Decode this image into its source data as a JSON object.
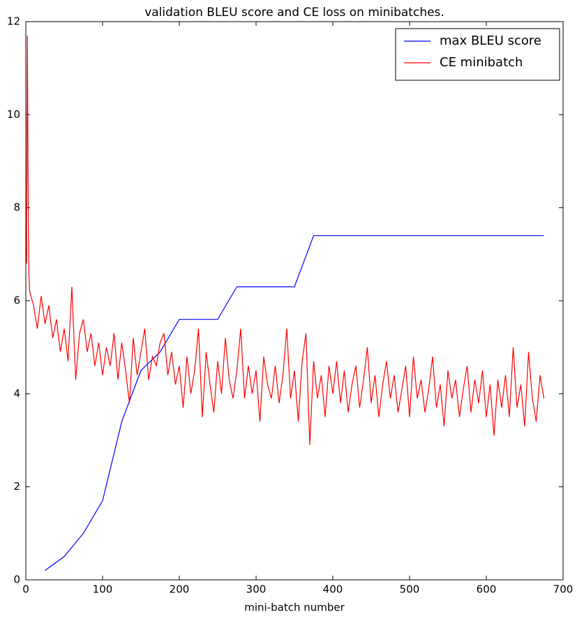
{
  "chart_data": {
    "type": "line",
    "title": "validation BLEU score and CE loss on minibatches.",
    "x_label": "mini-batch number",
    "xlim": [
      0,
      700
    ],
    "xticks": [
      0,
      100,
      200,
      300,
      400,
      500,
      600,
      700
    ],
    "ylim": [
      0,
      12
    ],
    "yticks": [
      0,
      2,
      4,
      6,
      8,
      10,
      12
    ],
    "grid": false,
    "legend": "upper right",
    "series": [
      {
        "name": "max BLEU score",
        "color": "#0000ff",
        "x": [
          25,
          50,
          75,
          100,
          125,
          150,
          175,
          200,
          225,
          250,
          275,
          300,
          325,
          350,
          375,
          400,
          425,
          450,
          475,
          500,
          525,
          550,
          575,
          600,
          625,
          650,
          675
        ],
        "values": [
          0.2,
          0.5,
          1.0,
          1.7,
          3.4,
          4.5,
          4.9,
          5.6,
          5.6,
          5.6,
          6.3,
          6.3,
          6.3,
          6.3,
          7.4,
          7.4,
          7.4,
          7.4,
          7.4,
          7.4,
          7.4,
          7.4,
          7.4,
          7.4,
          7.4,
          7.4,
          7.4
        ]
      },
      {
        "name": "CE minibatch",
        "color": "#ff0000",
        "x": [
          1,
          2,
          3,
          4,
          5,
          10,
          15,
          20,
          25,
          30,
          35,
          40,
          45,
          50,
          55,
          60,
          65,
          70,
          75,
          80,
          85,
          90,
          95,
          100,
          105,
          110,
          115,
          120,
          125,
          130,
          135,
          140,
          145,
          150,
          155,
          160,
          165,
          170,
          175,
          180,
          185,
          190,
          195,
          200,
          205,
          210,
          215,
          220,
          225,
          230,
          235,
          240,
          245,
          250,
          255,
          260,
          265,
          270,
          275,
          280,
          285,
          290,
          295,
          300,
          305,
          310,
          315,
          320,
          325,
          330,
          335,
          340,
          345,
          350,
          355,
          360,
          365,
          370,
          375,
          380,
          385,
          390,
          395,
          400,
          405,
          410,
          415,
          420,
          425,
          430,
          435,
          440,
          445,
          450,
          455,
          460,
          465,
          470,
          475,
          480,
          485,
          490,
          495,
          500,
          505,
          510,
          515,
          520,
          525,
          530,
          535,
          540,
          545,
          550,
          555,
          560,
          565,
          570,
          575,
          580,
          585,
          590,
          595,
          600,
          605,
          610,
          615,
          620,
          625,
          630,
          635,
          640,
          645,
          650,
          655,
          660,
          665,
          670,
          675
        ],
        "values": [
          6.8,
          11.7,
          8.5,
          6.6,
          6.2,
          5.9,
          5.4,
          6.1,
          5.5,
          5.9,
          5.2,
          5.6,
          4.9,
          5.4,
          4.7,
          6.3,
          4.3,
          5.3,
          5.6,
          4.9,
          5.3,
          4.6,
          5.1,
          4.4,
          5.0,
          4.6,
          5.3,
          4.3,
          5.1,
          4.5,
          3.8,
          5.2,
          4.4,
          4.9,
          5.4,
          4.3,
          4.8,
          4.6,
          5.1,
          5.3,
          4.4,
          4.9,
          4.2,
          4.6,
          3.7,
          4.8,
          4.0,
          4.5,
          5.4,
          3.5,
          4.9,
          4.2,
          3.6,
          4.7,
          4.0,
          5.2,
          4.3,
          3.9,
          4.5,
          5.4,
          3.9,
          4.6,
          4.0,
          4.5,
          3.4,
          4.8,
          4.2,
          3.9,
          4.6,
          3.8,
          4.4,
          5.4,
          3.9,
          4.5,
          3.4,
          4.7,
          5.3,
          2.9,
          4.7,
          3.9,
          4.4,
          3.5,
          4.6,
          4.0,
          4.7,
          3.8,
          4.5,
          3.6,
          4.2,
          4.6,
          3.7,
          4.3,
          5.0,
          3.8,
          4.4,
          3.5,
          4.2,
          4.7,
          3.9,
          4.4,
          3.6,
          4.1,
          4.6,
          3.5,
          4.8,
          3.9,
          4.3,
          3.6,
          4.1,
          4.8,
          3.7,
          4.2,
          3.3,
          4.5,
          3.9,
          4.3,
          3.5,
          4.1,
          4.6,
          3.6,
          4.3,
          3.8,
          4.5,
          3.5,
          4.2,
          3.1,
          4.3,
          3.7,
          4.4,
          3.5,
          5.0,
          3.7,
          4.2,
          3.3,
          4.9,
          3.9,
          3.4,
          4.4,
          3.9
        ]
      }
    ]
  }
}
